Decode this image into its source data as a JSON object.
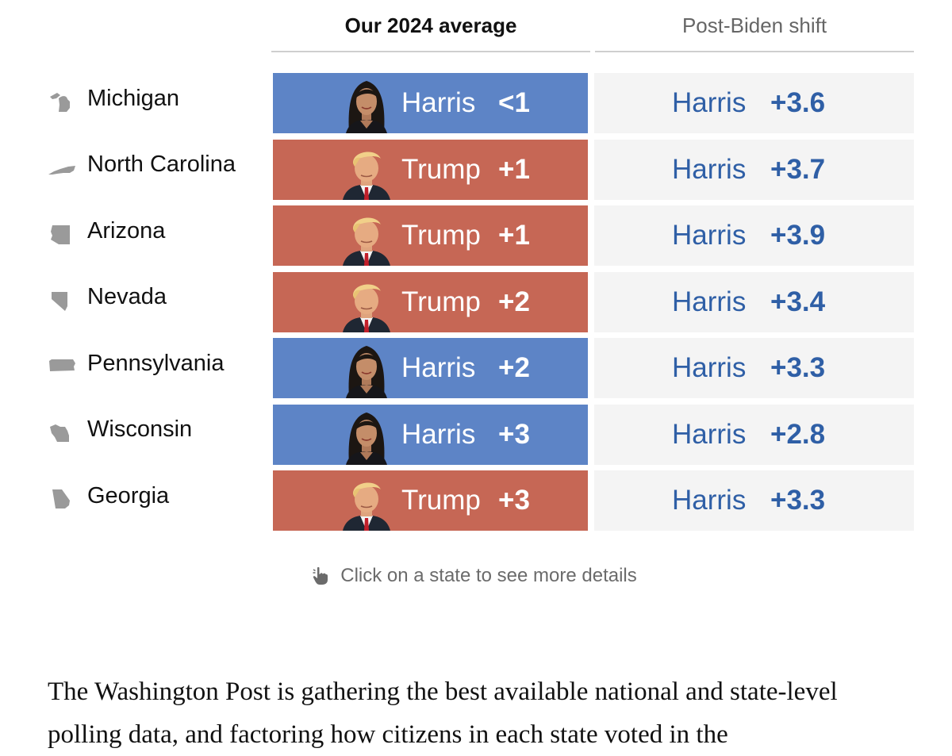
{
  "header": {
    "average_label": "Our 2024 average",
    "shift_label": "Post-Biden shift"
  },
  "rows": [
    {
      "state": "Michigan",
      "state_icon": "michigan-shape-icon",
      "leader": "Harris",
      "margin": "<1",
      "color": "#5d84c6",
      "shift_leader": "Harris",
      "shift": "+3.6"
    },
    {
      "state": "North Carolina",
      "state_icon": "north-carolina-shape-icon",
      "leader": "Trump",
      "margin": "+1",
      "color": "#c66755",
      "shift_leader": "Harris",
      "shift": "+3.7"
    },
    {
      "state": "Arizona",
      "state_icon": "arizona-shape-icon",
      "leader": "Trump",
      "margin": "+1",
      "color": "#c66755",
      "shift_leader": "Harris",
      "shift": "+3.9"
    },
    {
      "state": "Nevada",
      "state_icon": "nevada-shape-icon",
      "leader": "Trump",
      "margin": "+2",
      "color": "#c66755",
      "shift_leader": "Harris",
      "shift": "+3.4"
    },
    {
      "state": "Pennsylvania",
      "state_icon": "pennsylvania-shape-icon",
      "leader": "Harris",
      "margin": "+2",
      "color": "#5d84c6",
      "shift_leader": "Harris",
      "shift": "+3.3"
    },
    {
      "state": "Wisconsin",
      "state_icon": "wisconsin-shape-icon",
      "leader": "Harris",
      "margin": "+3",
      "color": "#5d84c6",
      "shift_leader": "Harris",
      "shift": "+2.8"
    },
    {
      "state": "Georgia",
      "state_icon": "georgia-shape-icon",
      "leader": "Trump",
      "margin": "+3",
      "color": "#c66755",
      "shift_leader": "Harris",
      "shift": "+3.3"
    }
  ],
  "hint": {
    "icon": "pointer-hand-icon",
    "text": "Click on a state to see more details"
  },
  "article": {
    "paragraph": "The Washington Post is gathering the best available national and state-level polling data, and factoring how citizens in each state voted in the"
  },
  "colors": {
    "harris_blue": "#5d84c6",
    "trump_red": "#c66755",
    "shift_text": "#2f5fa6",
    "shift_bg": "#f4f4f4"
  }
}
